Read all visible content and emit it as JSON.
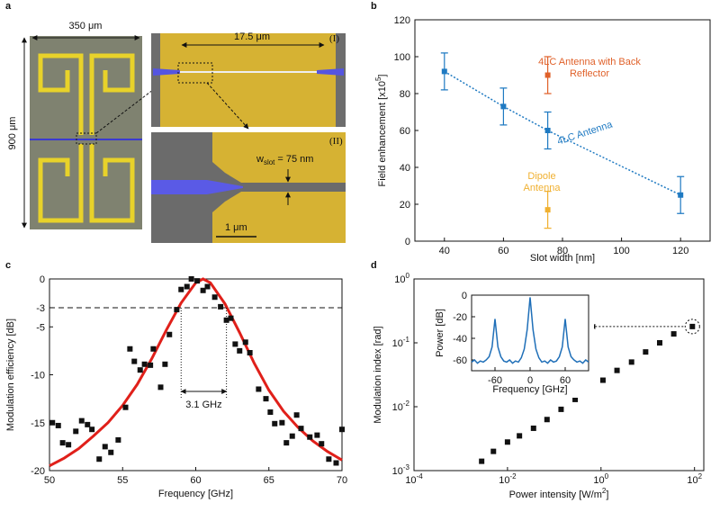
{
  "panel_a": {
    "label": "a",
    "width_label": "350 μm",
    "height_label": "900 μm",
    "zoom1_label": "(I)",
    "zoom1_length": "17.5 μm",
    "zoom2_label": "(II)",
    "slot_label": {
      "symbol": "w",
      "subscript": "slot",
      "text": "= 75 nm"
    },
    "scale_bar": "1 μm"
  },
  "chart_data": [
    {
      "type": "errorbar",
      "panel_label": "b",
      "xlabel": "Slot width [nm]",
      "ylabel": {
        "text": "Field enhancement [x10",
        "superscript": "5",
        "suffix": "]"
      },
      "xlim": [
        30,
        130
      ],
      "ylim": [
        0,
        120
      ],
      "xticks": [
        40,
        60,
        80,
        100,
        120
      ],
      "yticks": [
        0,
        20,
        40,
        60,
        80,
        100,
        120
      ],
      "series": [
        {
          "name": "4LC Antenna",
          "color": "#1f7ac2",
          "x": [
            40,
            60,
            75,
            120
          ],
          "values": [
            92,
            73,
            60,
            25
          ],
          "errors": [
            10,
            10,
            10,
            10
          ],
          "line": "dotted"
        },
        {
          "name": "4LC Antenna with Back Reflector",
          "color": "#e0612a",
          "x": [
            75
          ],
          "values": [
            90
          ],
          "errors": [
            10
          ]
        },
        {
          "name": "Dipole Antenna",
          "color": "#f0b030",
          "x": [
            75
          ],
          "values": [
            17
          ],
          "errors": [
            10
          ]
        }
      ]
    },
    {
      "type": "scatter",
      "panel_label": "c",
      "xlabel": "Frequency [GHz]",
      "ylabel": "Modulation efficiency [dB]",
      "xlim": [
        50,
        70
      ],
      "ylim": [
        -20,
        0
      ],
      "xticks": [
        50,
        55,
        60,
        65,
        70
      ],
      "yticks": [
        0,
        -3,
        -5,
        -10,
        -15,
        -20
      ],
      "color": "#111111",
      "x": [
        50.2,
        50.6,
        50.9,
        51.3,
        51.8,
        52.2,
        52.6,
        52.9,
        53.4,
        53.8,
        54.2,
        54.7,
        55.2,
        55.5,
        55.8,
        56.2,
        56.5,
        56.9,
        57.1,
        57.6,
        57.9,
        58.2,
        58.7,
        59.0,
        59.4,
        59.7,
        60.1,
        60.5,
        60.8,
        61.3,
        61.7,
        62.1,
        62.4,
        62.7,
        63.0,
        63.4,
        63.7,
        64.3,
        64.8,
        65.1,
        65.4,
        65.9,
        66.2,
        66.6,
        66.9,
        67.2,
        67.8,
        68.3,
        68.6,
        69.1,
        69.6,
        70.0
      ],
      "values": [
        -15.0,
        -15.3,
        -17.1,
        -17.3,
        -15.9,
        -14.8,
        -15.2,
        -15.7,
        -18.8,
        -17.5,
        -18.1,
        -16.8,
        -13.4,
        -7.3,
        -8.6,
        -9.5,
        -8.9,
        -9.0,
        -7.3,
        -11.3,
        -8.9,
        -5.8,
        -3.2,
        -1.1,
        -0.8,
        0,
        -0.2,
        -1.2,
        -0.8,
        -1.9,
        -2.9,
        -4.3,
        -4.1,
        -6.8,
        -7.5,
        -6.6,
        -7.7,
        -11.5,
        -12.5,
        -13.9,
        -15.1,
        -15.0,
        -17.1,
        -16.4,
        -14.2,
        -15.6,
        -16.5,
        -16.3,
        -17.2,
        -18.8,
        -19.2,
        -15.7
      ],
      "fit": {
        "color": "#e0201a",
        "x": [
          50,
          51,
          52,
          53,
          54,
          55,
          56,
          57,
          58,
          59,
          60,
          60.5,
          61,
          62,
          63,
          64,
          65,
          66,
          67,
          68,
          69,
          70
        ],
        "values": [
          -19.5,
          -18.7,
          -17.7,
          -16.4,
          -15.0,
          -13.2,
          -11,
          -8.3,
          -5.3,
          -2.5,
          -0.4,
          0,
          -0.4,
          -2.6,
          -5.6,
          -8.8,
          -11.6,
          -13.8,
          -15.5,
          -16.9,
          -18,
          -18.9
        ]
      },
      "reference_line": -3,
      "bandwidth": {
        "start": 59,
        "end": 62.1,
        "label": "3.1 GHz"
      }
    },
    {
      "type": "scatter",
      "panel_label": "d",
      "log_scale": true,
      "xlabel": {
        "text": "Power intensity [W/m",
        "superscript": "2",
        "suffix": "]"
      },
      "ylabel": "Modulation index [rad]",
      "xlim": [
        0.0001,
        158
      ],
      "ylim": [
        0.001,
        1
      ],
      "xticks": [
        {
          "value": 0.0001,
          "label": "10",
          "exponent": "-4"
        },
        {
          "value": 0.01,
          "label": "10",
          "exponent": "-2"
        },
        {
          "value": 1,
          "label": "10",
          "exponent": "0"
        },
        {
          "value": 100,
          "label": "10",
          "exponent": "2"
        }
      ],
      "yticks": [
        {
          "value": 0.001,
          "label": "10",
          "exponent": "-3"
        },
        {
          "value": 0.01,
          "label": "10",
          "exponent": "-2"
        },
        {
          "value": 0.1,
          "label": "10",
          "exponent": "-1"
        },
        {
          "value": 1,
          "label": "10",
          "exponent": "0"
        }
      ],
      "color": "#111111",
      "x": [
        0.0028,
        0.005,
        0.01,
        0.018,
        0.036,
        0.07,
        0.14,
        0.28,
        0.55,
        1.1,
        2.2,
        4.5,
        9,
        18,
        36,
        90
      ],
      "values": [
        0.0014,
        0.002,
        0.0028,
        0.0035,
        0.0046,
        0.0063,
        0.0091,
        0.013,
        0.018,
        0.026,
        0.037,
        0.05,
        0.072,
        0.1,
        0.138,
        0.18
      ]
    },
    {
      "type": "line",
      "xlabel": "Frequency [GHz]",
      "ylabel": "Power [dB]",
      "xlim": [
        -100,
        100
      ],
      "ylim": [
        -70,
        0
      ],
      "xticks": [
        -60,
        0,
        60
      ],
      "yticks": [
        0,
        -20,
        -40,
        -60
      ],
      "color": "#1f6fb8",
      "x": [
        -100,
        -95,
        -90,
        -85,
        -80,
        -75,
        -70,
        -65,
        -60,
        -55,
        -50,
        -45,
        -40,
        -35,
        -30,
        -25,
        -20,
        -15,
        -10,
        -5,
        0,
        5,
        10,
        15,
        20,
        25,
        30,
        35,
        40,
        45,
        50,
        55,
        60,
        65,
        70,
        75,
        80,
        85,
        90,
        95,
        100
      ],
      "values": [
        -62,
        -60,
        -63,
        -61,
        -62,
        -60,
        -57,
        -48,
        -22,
        -48,
        -57,
        -61,
        -62,
        -60,
        -63,
        -61,
        -62,
        -58,
        -50,
        -32,
        -2,
        -32,
        -50,
        -58,
        -62,
        -61,
        -63,
        -60,
        -62,
        -61,
        -57,
        -48,
        -22,
        -48,
        -57,
        -60,
        -62,
        -61,
        -63,
        -60,
        -62
      ]
    }
  ]
}
